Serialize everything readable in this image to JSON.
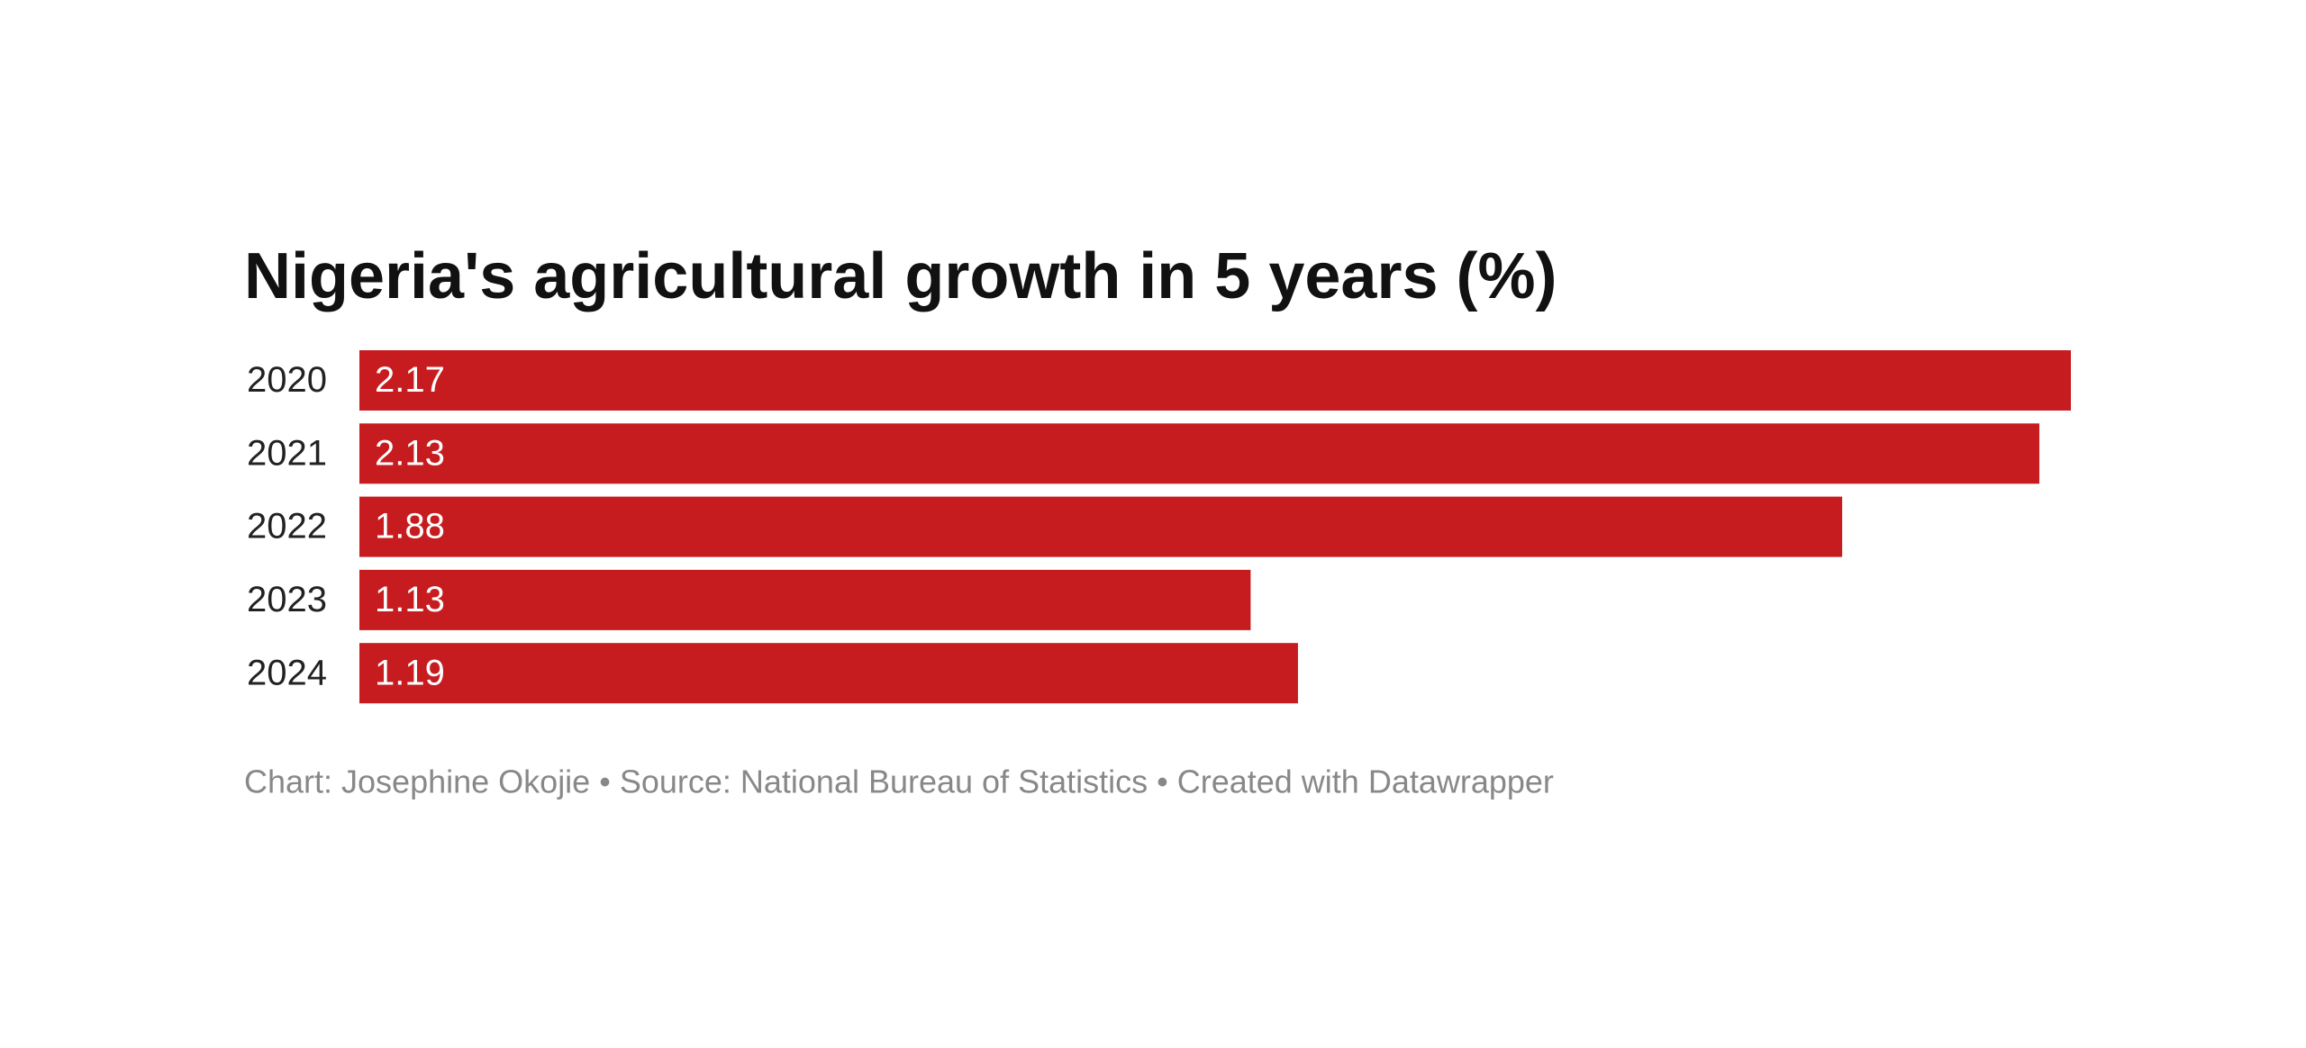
{
  "chart_data": {
    "type": "bar",
    "orientation": "horizontal",
    "title": "Nigeria's agricultural growth in 5 years (%)",
    "categories": [
      "2020",
      "2021",
      "2022",
      "2023",
      "2024"
    ],
    "values": [
      2.17,
      2.13,
      1.88,
      1.13,
      1.19
    ],
    "color": "#c71c1f",
    "footer": "Chart: Josephine Okojie • Source: National Bureau of Statistics  • Created with Datawrapper"
  }
}
